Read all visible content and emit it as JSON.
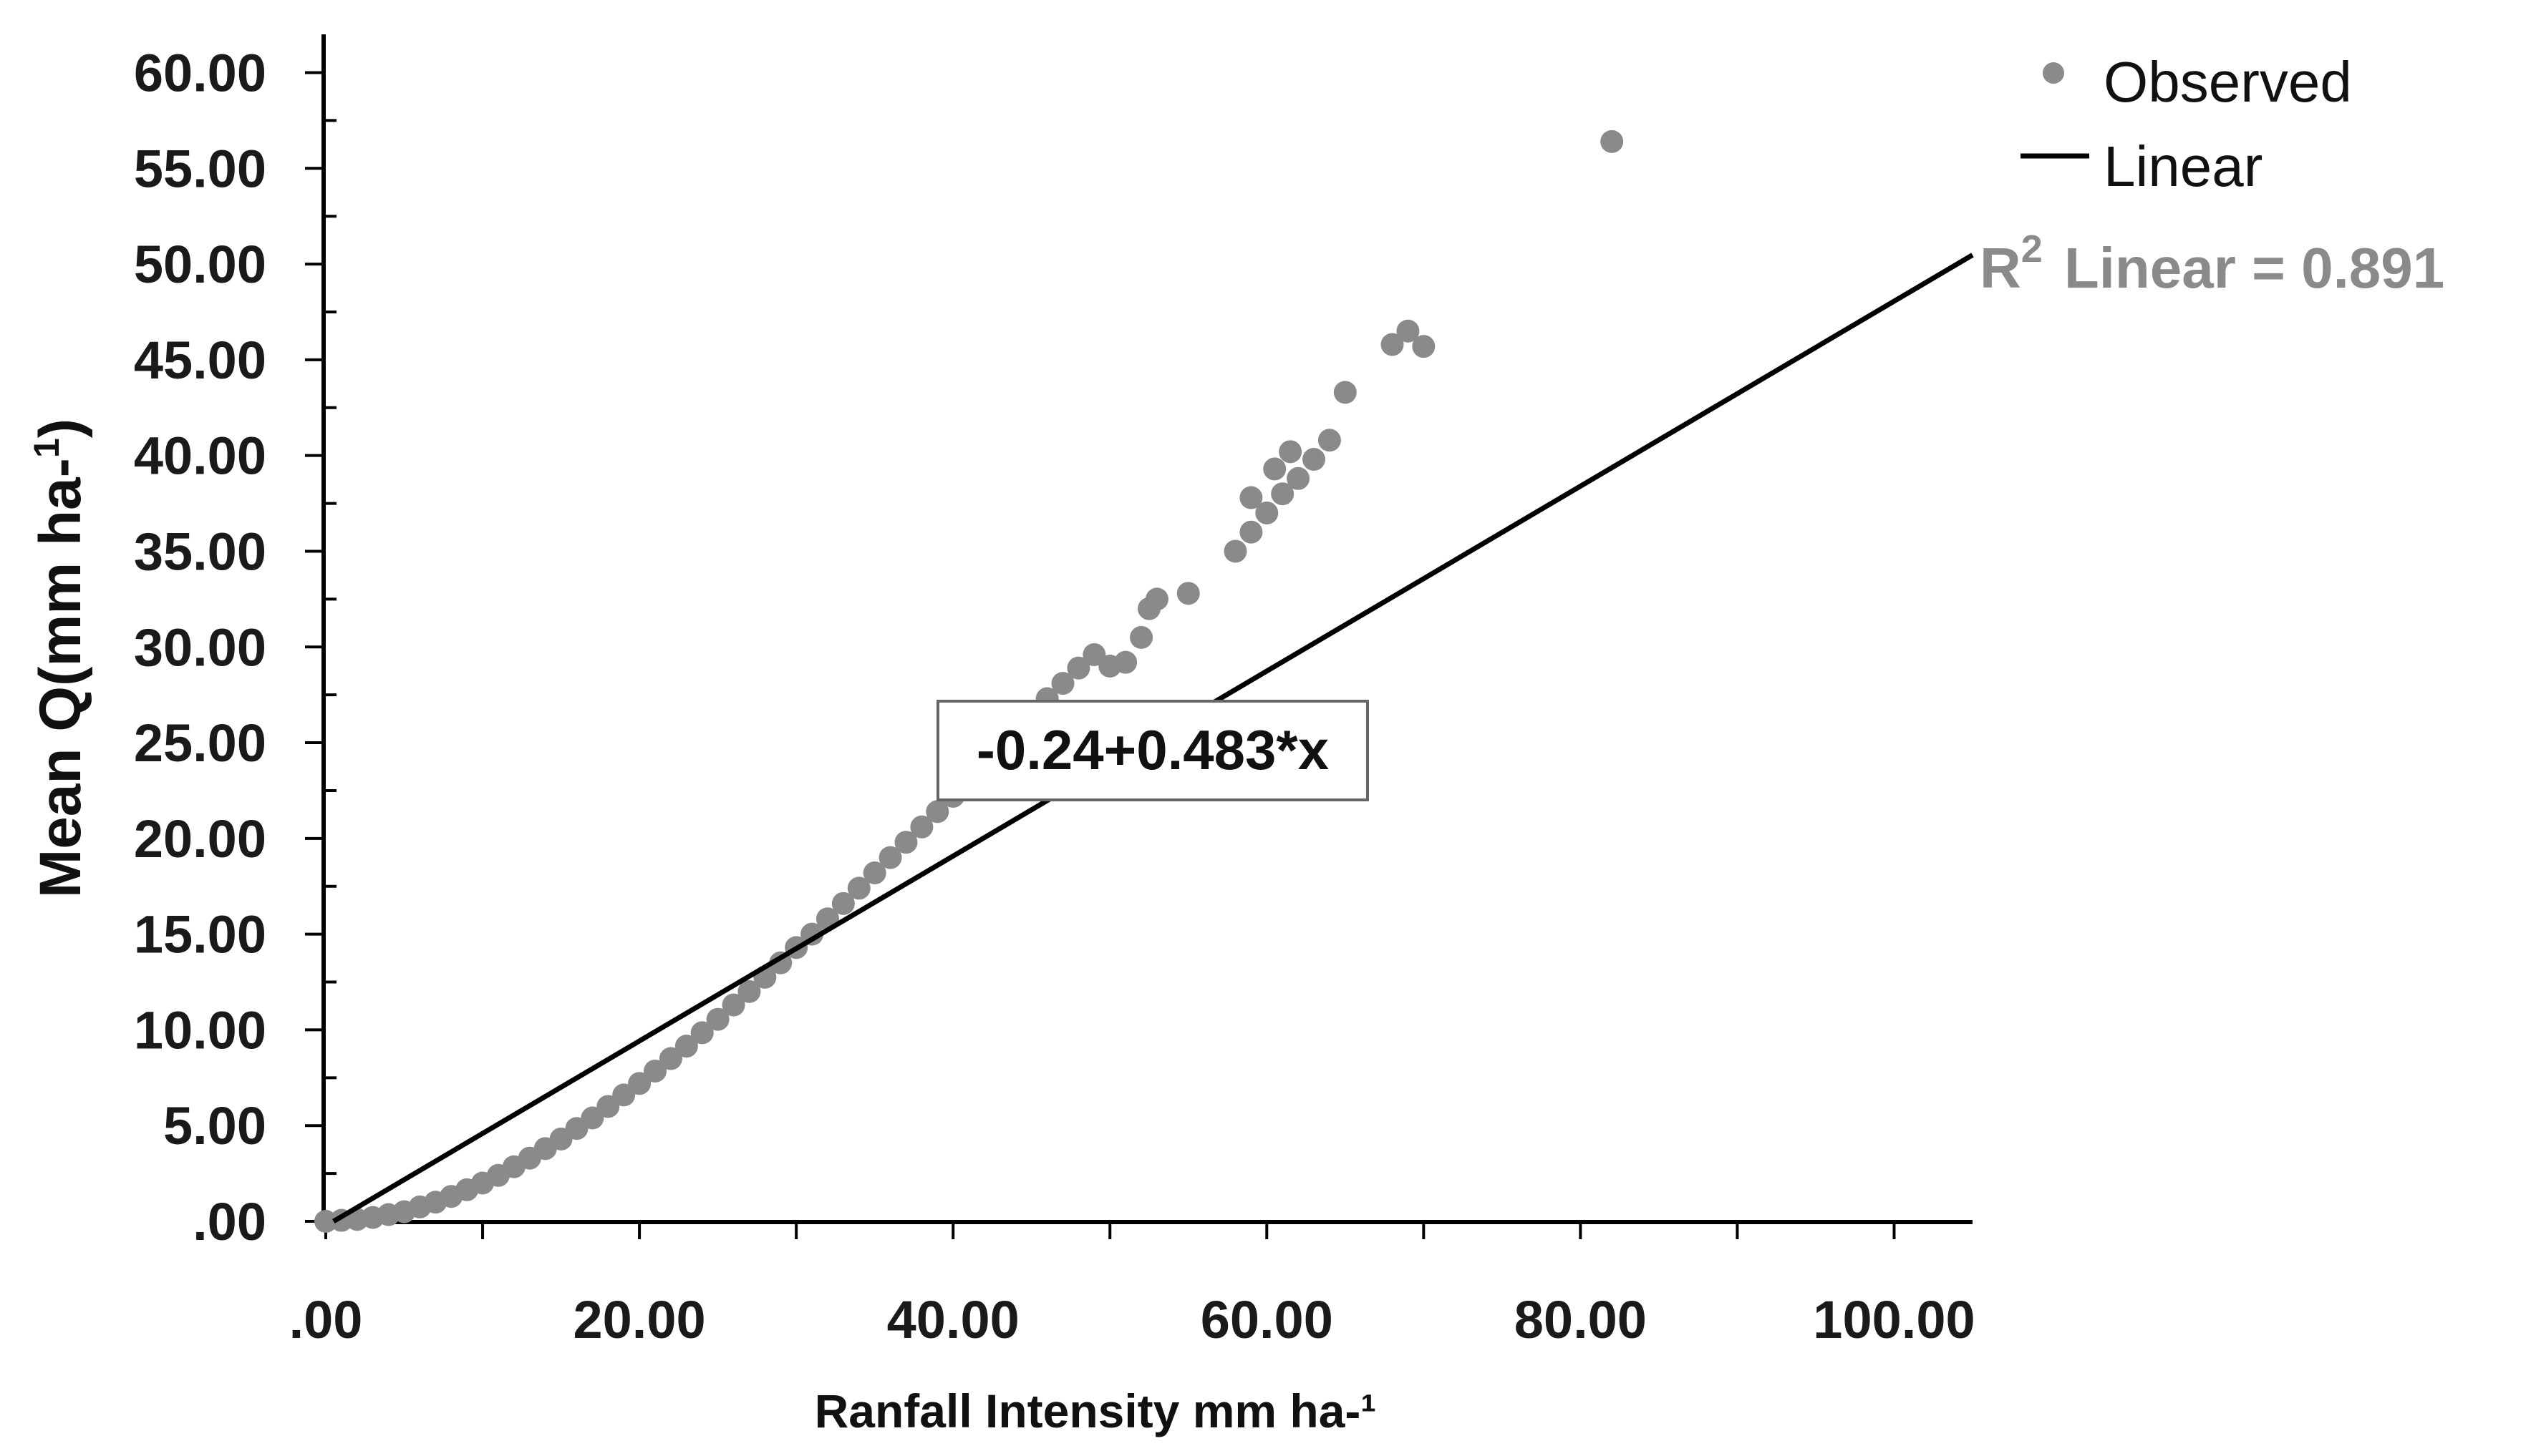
{
  "chart_data": {
    "type": "scatter",
    "title": "",
    "xlabel": "Ranfall Intensity mm ha-¹",
    "ylabel_main": "Mean Q(mm ha-",
    "ylabel_sup": "1",
    "ylabel_close": ")",
    "xlim": [
      0,
      105
    ],
    "ylim": [
      0,
      62
    ],
    "x_ticks": [
      {
        "value": 0,
        "label": ".00"
      },
      {
        "value": 20,
        "label": "20.00"
      },
      {
        "value": 40,
        "label": "40.00"
      },
      {
        "value": 60,
        "label": "60.00"
      },
      {
        "value": 80,
        "label": "80.00"
      },
      {
        "value": 100,
        "label": "100.00"
      }
    ],
    "y_ticks": [
      {
        "value": 0,
        "label": ".00"
      },
      {
        "value": 5,
        "label": "5.00"
      },
      {
        "value": 10,
        "label": "10.00"
      },
      {
        "value": 15,
        "label": "15.00"
      },
      {
        "value": 20,
        "label": "20.00"
      },
      {
        "value": 25,
        "label": "25.00"
      },
      {
        "value": 30,
        "label": "30.00"
      },
      {
        "value": 35,
        "label": "35.00"
      },
      {
        "value": 40,
        "label": "40.00"
      },
      {
        "value": 45,
        "label": "45.00"
      },
      {
        "value": 50,
        "label": "50.00"
      },
      {
        "value": 55,
        "label": "55.00"
      },
      {
        "value": 60,
        "label": "60.00"
      }
    ],
    "grid": false,
    "legend_position": "top-right",
    "legend": [
      {
        "label": "Observed",
        "marker": "circle"
      },
      {
        "label": "Linear",
        "marker": "line"
      }
    ],
    "r2_prefix": "R",
    "r2_sup": "2",
    "r2_rest": "Linear = 0.891",
    "equation": "-0.24+0.483*x",
    "fit": {
      "intercept": -0.24,
      "slope": 0.483,
      "x_range": [
        0,
        105
      ]
    },
    "colors": {
      "observed": "#8a8a8a",
      "linear": "#000000",
      "axis": "#000000"
    },
    "series": [
      {
        "name": "Observed",
        "points": [
          [
            0,
            0
          ],
          [
            1,
            0.05
          ],
          [
            2,
            0.1
          ],
          [
            3,
            0.2
          ],
          [
            4,
            0.35
          ],
          [
            5,
            0.5
          ],
          [
            6,
            0.75
          ],
          [
            7,
            1.0
          ],
          [
            8,
            1.3
          ],
          [
            9,
            1.65
          ],
          [
            10,
            2.0
          ],
          [
            11,
            2.4
          ],
          [
            12,
            2.85
          ],
          [
            13,
            3.3
          ],
          [
            14,
            3.8
          ],
          [
            15,
            4.3
          ],
          [
            16,
            4.85
          ],
          [
            17,
            5.4
          ],
          [
            18,
            6.0
          ],
          [
            19,
            6.6
          ],
          [
            20,
            7.2
          ],
          [
            21,
            7.85
          ],
          [
            22,
            8.5
          ],
          [
            23,
            9.15
          ],
          [
            24,
            9.85
          ],
          [
            25,
            10.55
          ],
          [
            26,
            11.3
          ],
          [
            27,
            12.0
          ],
          [
            28,
            12.75
          ],
          [
            29,
            13.5
          ],
          [
            30,
            14.3
          ],
          [
            31,
            15.0
          ],
          [
            32,
            15.8
          ],
          [
            33,
            16.6
          ],
          [
            34,
            17.4
          ],
          [
            35,
            18.2
          ],
          [
            36,
            19.0
          ],
          [
            37,
            19.8
          ],
          [
            38,
            20.6
          ],
          [
            39,
            21.4
          ],
          [
            40,
            22.2
          ],
          [
            41,
            23.1
          ],
          [
            42,
            23.9
          ],
          [
            43,
            24.8
          ],
          [
            44,
            25.6
          ],
          [
            45,
            26.5
          ],
          [
            46,
            27.3
          ],
          [
            47,
            28.1
          ],
          [
            48,
            28.9
          ],
          [
            49,
            29.6
          ],
          [
            50,
            29.0
          ],
          [
            51,
            29.2
          ],
          [
            52,
            30.5
          ],
          [
            52.5,
            32.0
          ],
          [
            53,
            32.5
          ],
          [
            55,
            32.8
          ],
          [
            58,
            35.0
          ],
          [
            59,
            36.0
          ],
          [
            59,
            37.8
          ],
          [
            60,
            37.0
          ],
          [
            60.5,
            39.3
          ],
          [
            61,
            38.0
          ],
          [
            61.5,
            40.2
          ],
          [
            62,
            38.8
          ],
          [
            63,
            39.8
          ],
          [
            64,
            40.8
          ],
          [
            65,
            43.3
          ],
          [
            68,
            45.8
          ],
          [
            69,
            46.5
          ],
          [
            70,
            45.7
          ],
          [
            82,
            56.4
          ]
        ]
      }
    ]
  }
}
